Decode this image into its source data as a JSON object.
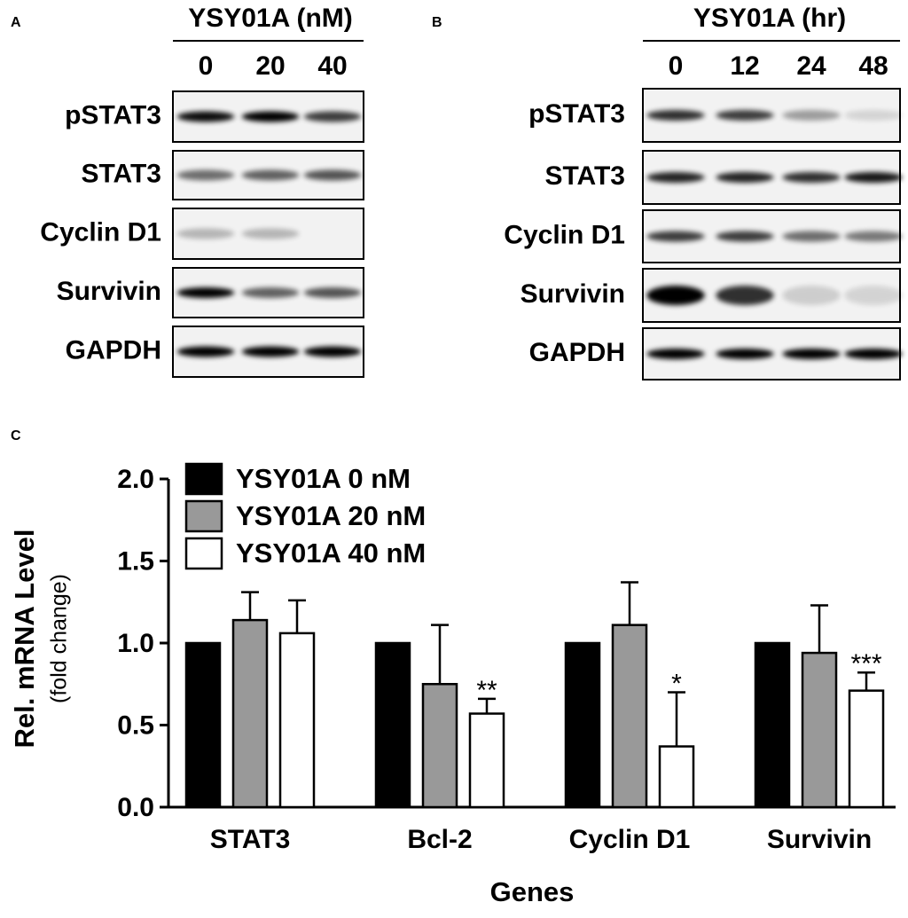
{
  "panels": [
    {
      "label": "A",
      "treatment": "YSY01A (nM)",
      "lanes": [
        "0",
        "20",
        "40"
      ],
      "rows": [
        "pSTAT3",
        "STAT3",
        "Cyclin D1",
        "Survivin",
        "GAPDH"
      ]
    },
    {
      "label": "B",
      "treatment": "YSY01A (hr)",
      "lanes": [
        "0",
        "12",
        "24",
        "48"
      ],
      "rows": [
        "pSTAT3",
        "STAT3",
        "Cyclin D1",
        "Survivin",
        "GAPDH"
      ]
    }
  ],
  "chart_data": {
    "type": "bar",
    "panel_label": "C",
    "xlabel": "Genes",
    "ylabel": "Rel. mRNA Level",
    "ylabel_sub": "(fold change)",
    "categories": [
      "STAT3",
      "Bcl-2",
      "Cyclin D1",
      "Survivin"
    ],
    "series": [
      {
        "name": "YSY01A 0 nM",
        "color": "#000000",
        "values": [
          1.0,
          1.0,
          1.0,
          1.0
        ]
      },
      {
        "name": "YSY01A 20 nM",
        "color": "#999999",
        "values": [
          1.14,
          0.75,
          1.11,
          0.94
        ],
        "errors": [
          0.17,
          0.36,
          0.26,
          0.29
        ]
      },
      {
        "name": "YSY01A 40 nM",
        "color": "#ffffff",
        "values": [
          1.06,
          0.57,
          0.37,
          0.71
        ],
        "errors": [
          0.2,
          0.09,
          0.33,
          0.11
        ],
        "significance": [
          null,
          "**",
          "*",
          "***"
        ]
      }
    ],
    "ylim": [
      0,
      2
    ],
    "yticks": [
      {
        "value": 0,
        "label": "0.0"
      },
      {
        "value": 0.5,
        "label": "0.5"
      },
      {
        "value": 1,
        "label": "1.0"
      },
      {
        "value": 1.5,
        "label": "1.5"
      },
      {
        "value": 2,
        "label": "2.0"
      }
    ]
  }
}
